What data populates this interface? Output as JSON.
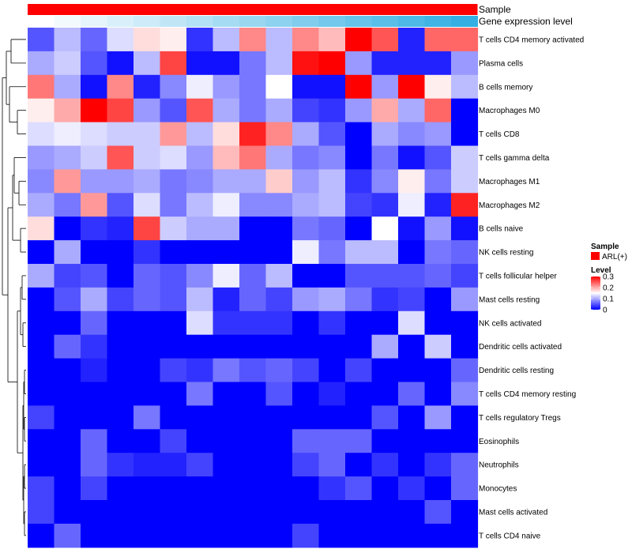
{
  "chart_data": {
    "type": "heatmap",
    "annotations": [
      {
        "label": "Sample",
        "color": "#ff0000"
      },
      {
        "label": "Gene expression level",
        "colors": [
          "#ffffff",
          "#f3fafd",
          "#e6f5fc",
          "#d9f0fa",
          "#cdebf8",
          "#c0e6f6",
          "#b3e1f5",
          "#a6dcf3",
          "#99d7f1",
          "#8dd2ef",
          "#80cdee",
          "#73c8ec",
          "#66c3ea",
          "#59bee8",
          "#4db9e7",
          "#40b4e5",
          "#33afe3"
        ]
      }
    ],
    "rows": [
      "T cells CD4 memory activated",
      "Plasma cells",
      "B cells memory",
      "Macrophages M0",
      "T cells CD8",
      "T cells gamma delta",
      "Macrophages M1",
      "Macrophages M2",
      "B cells naive",
      "NK cells resting",
      "T cells follicular helper",
      "Mast cells resting",
      "NK cells activated",
      "Dendritic cells activated",
      "Dendritic cells resting",
      "T cells CD4 memory resting",
      "T cells regulatory  Tregs",
      "Eosinophils",
      "Neutrophils",
      "Monocytes",
      "Mast cells activated",
      "T cells CD4 naive"
    ],
    "values": [
      [
        0.05,
        0.11,
        0.06,
        0.13,
        0.17,
        0.16,
        0.03,
        0.11,
        0.22,
        0.11,
        0.22,
        0.19,
        0.3,
        0.25,
        0.02,
        0.24,
        0.24
      ],
      [
        0.1,
        0.12,
        0.05,
        0.01,
        0.11,
        0.26,
        0.01,
        0.01,
        0.07,
        0.11,
        0.29,
        0.3,
        0.09,
        0.02,
        0.02,
        0.02,
        0.09
      ],
      [
        0.23,
        0.1,
        0.01,
        0.22,
        0.02,
        0.08,
        0.14,
        0.09,
        0.07,
        0.15,
        0.01,
        0.01,
        0.3,
        0.09,
        0.3,
        0.16,
        0.11
      ],
      [
        0.16,
        0.2,
        0.3,
        0.26,
        0.09,
        0.05,
        0.25,
        0.1,
        0.07,
        0.1,
        0.04,
        0.03,
        0.09,
        0.2,
        0.1,
        0.24,
        0.0
      ],
      [
        0.13,
        0.14,
        0.13,
        0.12,
        0.12,
        0.21,
        0.11,
        0.17,
        0.28,
        0.22,
        0.1,
        0.05,
        0.0,
        0.1,
        0.08,
        0.09,
        0.0
      ],
      [
        0.09,
        0.1,
        0.12,
        0.25,
        0.12,
        0.13,
        0.09,
        0.19,
        0.23,
        0.1,
        0.07,
        0.08,
        0.0,
        0.07,
        0.01,
        0.05,
        0.12
      ],
      [
        0.08,
        0.21,
        0.09,
        0.09,
        0.1,
        0.07,
        0.08,
        0.1,
        0.1,
        0.18,
        0.09,
        0.11,
        0.03,
        0.08,
        0.16,
        0.07,
        0.12
      ],
      [
        0.1,
        0.07,
        0.21,
        0.05,
        0.13,
        0.07,
        0.11,
        0.14,
        0.08,
        0.08,
        0.1,
        0.11,
        0.04,
        0.03,
        0.14,
        0.02,
        0.28
      ],
      [
        0.17,
        0.0,
        0.03,
        0.02,
        0.26,
        0.12,
        0.1,
        0.1,
        0.0,
        0.0,
        0.07,
        0.06,
        0.0,
        0.15,
        0.01,
        0.09,
        0.01
      ],
      [
        0.0,
        0.1,
        0.0,
        0.0,
        0.03,
        0.0,
        0.0,
        0.0,
        0.0,
        0.0,
        0.14,
        0.07,
        0.11,
        0.11,
        0.0,
        0.07,
        0.06
      ],
      [
        0.1,
        0.04,
        0.05,
        0.0,
        0.06,
        0.05,
        0.08,
        0.14,
        0.06,
        0.11,
        0.0,
        0.0,
        0.05,
        0.05,
        0.05,
        0.06,
        0.04
      ],
      [
        0.0,
        0.05,
        0.1,
        0.04,
        0.06,
        0.05,
        0.11,
        0.02,
        0.06,
        0.04,
        0.09,
        0.1,
        0.07,
        0.03,
        0.04,
        0.0,
        0.09
      ],
      [
        0.0,
        0.0,
        0.06,
        0.0,
        0.0,
        0.0,
        0.13,
        0.03,
        0.03,
        0.03,
        0.0,
        0.03,
        0.0,
        0.0,
        0.13,
        0.0,
        0.0
      ],
      [
        0.0,
        0.06,
        0.03,
        0.0,
        0.0,
        0.0,
        0.0,
        0.0,
        0.0,
        0.0,
        0.0,
        0.0,
        0.0,
        0.1,
        0.0,
        0.12,
        0.0
      ],
      [
        0.0,
        0.0,
        0.02,
        0.0,
        0.0,
        0.04,
        0.03,
        0.07,
        0.05,
        0.06,
        0.04,
        0.0,
        0.04,
        0.0,
        0.0,
        0.0,
        0.06
      ],
      [
        0.0,
        0.0,
        0.0,
        0.0,
        0.0,
        0.0,
        0.07,
        0.0,
        0.0,
        0.05,
        0.0,
        0.02,
        0.0,
        0.0,
        0.06,
        0.0,
        0.08
      ],
      [
        0.04,
        0.0,
        0.0,
        0.0,
        0.07,
        0.0,
        0.0,
        0.0,
        0.0,
        0.0,
        0.0,
        0.0,
        0.0,
        0.05,
        0.0,
        0.09,
        0.0
      ],
      [
        0.0,
        0.0,
        0.06,
        0.0,
        0.0,
        0.04,
        0.0,
        0.0,
        0.0,
        0.0,
        0.06,
        0.06,
        0.06,
        0.0,
        0.0,
        0.0,
        0.0
      ],
      [
        0.0,
        0.0,
        0.06,
        0.03,
        0.02,
        0.02,
        0.04,
        0.0,
        0.0,
        0.0,
        0.04,
        0.06,
        0.0,
        0.03,
        0.0,
        0.03,
        0.06
      ],
      [
        0.04,
        0.0,
        0.04,
        0.0,
        0.0,
        0.0,
        0.0,
        0.0,
        0.0,
        0.0,
        0.0,
        0.03,
        0.05,
        0.0,
        0.03,
        0.0,
        0.06
      ],
      [
        0.04,
        0.0,
        0.0,
        0.0,
        0.0,
        0.0,
        0.0,
        0.0,
        0.0,
        0.0,
        0.0,
        0.0,
        0.0,
        0.0,
        0.0,
        0.05,
        0.0
      ],
      [
        0.0,
        0.06,
        0.0,
        0.0,
        0.0,
        0.0,
        0.0,
        0.0,
        0.0,
        0.0,
        0.04,
        0.0,
        0.0,
        0.0,
        0.0,
        0.0,
        0.0
      ]
    ],
    "color_scale": {
      "min": 0,
      "mid": 0.15,
      "max": 0.3,
      "low": "#0000ff",
      "mid_color": "#ffffff",
      "high": "#ff0000"
    },
    "legend": {
      "title_sample": "Sample",
      "sample_entry": "ARL(+)",
      "title_level": "Level",
      "ticks": [
        0.3,
        0.2,
        0.1,
        0
      ],
      "tick_labels": [
        "0.3",
        "0.2",
        "0.1",
        "0"
      ]
    },
    "dendrogram": "row"
  }
}
